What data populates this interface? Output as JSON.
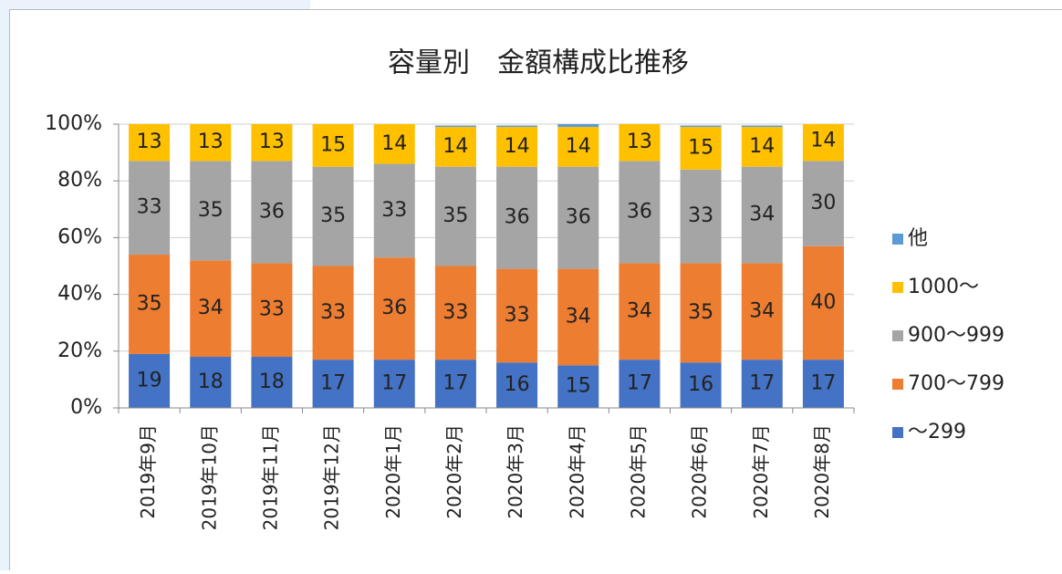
{
  "chart_data": {
    "type": "stacked-bar",
    "title": "容量別　金額構成比推移",
    "categories": [
      "2019年9月",
      "2019年10月",
      "2019年11月",
      "2019年12月",
      "2020年1月",
      "2020年2月",
      "2020年3月",
      "2020年4月",
      "2020年5月",
      "2020年6月",
      "2020年7月",
      "2020年8月"
    ],
    "series": [
      {
        "name": "～299",
        "color": "#4472c4",
        "values": [
          19,
          18,
          18,
          17,
          17,
          17,
          16,
          15,
          17,
          16,
          17,
          17
        ]
      },
      {
        "name": "700～799",
        "color": "#ed7d31",
        "values": [
          35,
          34,
          33,
          33,
          36,
          33,
          33,
          34,
          34,
          35,
          34,
          40
        ]
      },
      {
        "name": "900～999",
        "color": "#a5a5a5",
        "values": [
          33,
          35,
          36,
          35,
          33,
          35,
          36,
          36,
          36,
          33,
          34,
          30
        ]
      },
      {
        "name": "1000～",
        "color": "#ffc000",
        "values": [
          13,
          13,
          13,
          15,
          14,
          14,
          14,
          14,
          13,
          15,
          14,
          14
        ]
      },
      {
        "name": "他",
        "color": "#5b9bd5",
        "values": [
          0,
          0,
          0,
          0.5,
          0.5,
          0.5,
          0.5,
          1,
          0.5,
          0.5,
          0.5,
          0.3
        ]
      }
    ],
    "ylim": [
      0,
      100
    ],
    "yticks": [
      {
        "value": 0,
        "label": "0%"
      },
      {
        "value": 20,
        "label": "20%"
      },
      {
        "value": 40,
        "label": "40%"
      },
      {
        "value": 60,
        "label": "60%"
      },
      {
        "value": 80,
        "label": "80%"
      },
      {
        "value": 100,
        "label": "100%"
      }
    ],
    "legend": "right"
  }
}
